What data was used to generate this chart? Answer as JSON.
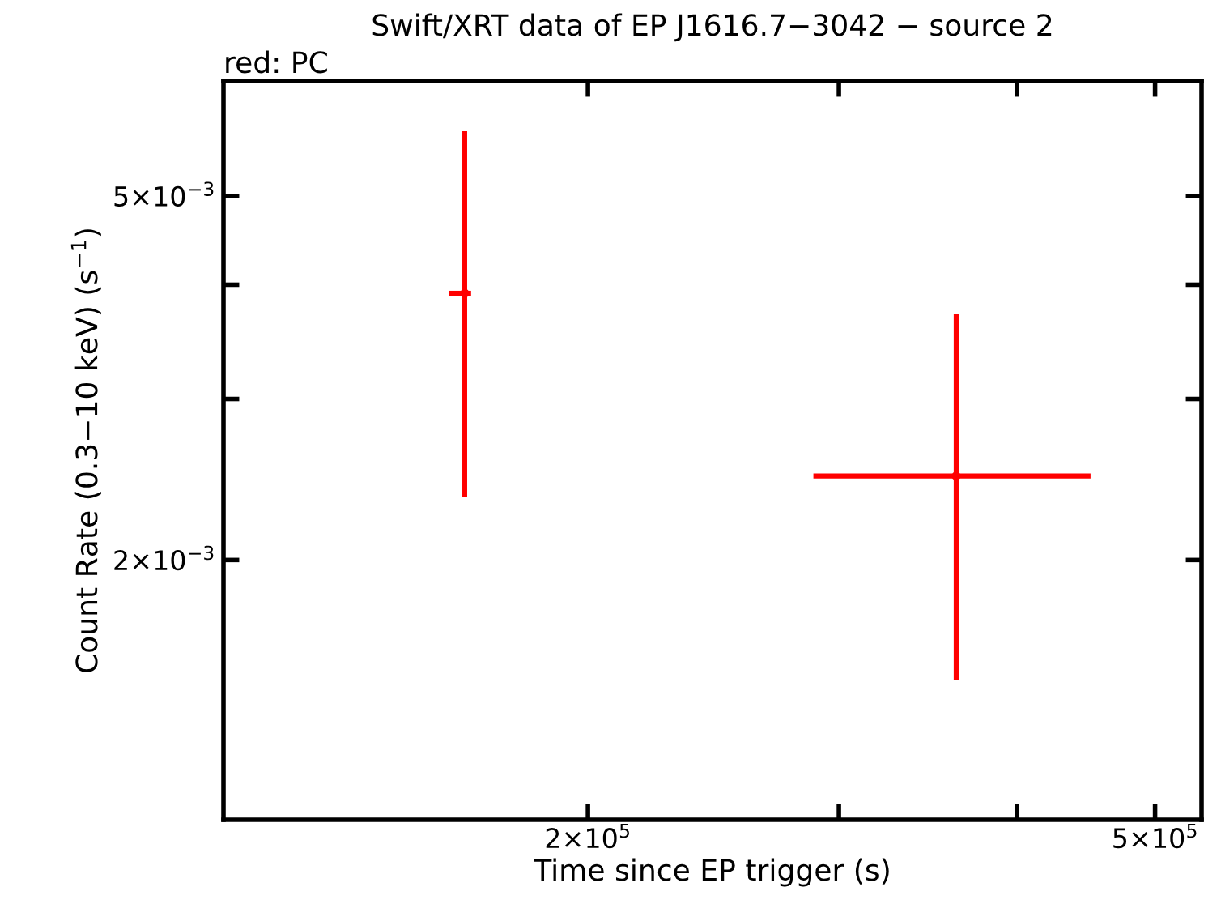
{
  "chart_data": {
    "type": "scatter",
    "title": "Swift/XRT data of EP J1616.7−3042 − source 2",
    "annotations": [
      "red: PC"
    ],
    "xlabel": "Time since EP trigger (s)",
    "ylabel": "Count Rate (0.3−10 keV) (s$^{−1}$)",
    "log": "xy",
    "grid": false,
    "xlim": [
      111000,
      539000
    ],
    "ylim": [
      0.00104,
      0.00668
    ],
    "xticks": [
      {
        "value": 200000,
        "label": "2×10$^{5}$"
      },
      {
        "value": 300000,
        "label": null
      },
      {
        "value": 400000,
        "label": null
      },
      {
        "value": 500000,
        "label": "5×10$^{5}$"
      }
    ],
    "yticks": [
      {
        "value": 0.002,
        "label": "2×10$^{−3}$"
      },
      {
        "value": 0.003,
        "label": null
      },
      {
        "value": 0.004,
        "label": null
      },
      {
        "value": 0.005,
        "label": "5×10$^{−3}$"
      }
    ],
    "series": [
      {
        "color": "#ff0000",
        "x": [
          163900,
          362600
        ],
        "values": [
          0.003915,
          0.002471
        ],
        "errors": [
          [
            0.002343,
            0.005886
          ],
          [
            0.001478,
            0.003713
          ]
        ],
        "xerrors": [
          [
            159700,
            165600
          ],
          [
            287900,
            450500
          ]
        ]
      }
    ]
  }
}
